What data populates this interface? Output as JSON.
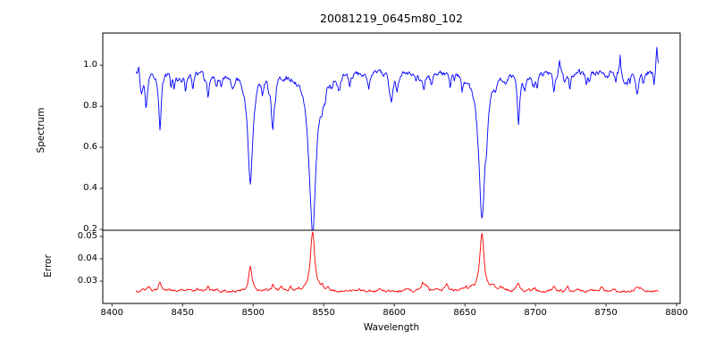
{
  "chart_data": [
    {
      "type": "line",
      "panel": "spectrum",
      "title": "20081219_0645m80_102",
      "ylabel": "Spectrum",
      "series_color": "#0000ff",
      "ylim": [
        0.196,
        1.157
      ],
      "yticks": [
        0.2,
        0.4,
        0.6,
        0.8,
        1.0
      ],
      "x_start": 8417,
      "x_end": 8787,
      "continuum": 0.97,
      "noise_amplitude": 0.018,
      "grid": false,
      "legend": false,
      "absorption_lines": [
        {
          "center": 8424,
          "min_flux": 0.84,
          "width": 0.8
        },
        {
          "center": 8434,
          "min_flux": 0.69,
          "width": 1.0
        },
        {
          "center": 8452,
          "min_flux": 0.88,
          "width": 0.8
        },
        {
          "center": 8468,
          "min_flux": 0.86,
          "width": 0.9
        },
        {
          "center": 8498.0,
          "min_flux": 0.43,
          "width": 2.2
        },
        {
          "center": 8514,
          "min_flux": 0.78,
          "width": 1.0
        },
        {
          "center": 8542.1,
          "min_flux": 0.23,
          "width": 3.0
        },
        {
          "center": 8582,
          "min_flux": 0.89,
          "width": 0.8
        },
        {
          "center": 8598,
          "min_flux": 0.87,
          "width": 0.8
        },
        {
          "center": 8621,
          "min_flux": 0.89,
          "width": 0.8
        },
        {
          "center": 8648,
          "min_flux": 0.9,
          "width": 0.8
        },
        {
          "center": 8662.1,
          "min_flux": 0.26,
          "width": 2.8
        },
        {
          "center": 8688,
          "min_flux": 0.72,
          "width": 1.0
        },
        {
          "center": 8713,
          "min_flux": 0.88,
          "width": 0.9
        },
        {
          "center": 8736,
          "min_flux": 0.91,
          "width": 0.8
        },
        {
          "center": 8757,
          "min_flux": 0.92,
          "width": 0.7
        },
        {
          "center": 8772,
          "min_flux": 0.87,
          "width": 0.9
        }
      ],
      "emission_spikes": [
        {
          "center": 8419,
          "peak_flux": 1.02,
          "width": 0.5
        },
        {
          "center": 8717,
          "peak_flux": 1.03,
          "width": 0.5
        },
        {
          "center": 8760,
          "peak_flux": 1.06,
          "width": 0.5
        },
        {
          "center": 8786,
          "peak_flux": 1.09,
          "width": 0.7
        }
      ]
    },
    {
      "type": "line",
      "panel": "error",
      "ylabel": "Error",
      "xlabel": "Wavelength",
      "series_color": "#ff0000",
      "ylim": [
        0.02,
        0.0528
      ],
      "yticks": [
        0.03,
        0.04,
        0.05
      ],
      "xlim": [
        8393.5,
        8802.5
      ],
      "xticks": [
        8400,
        8450,
        8500,
        8550,
        8600,
        8650,
        8700,
        8750,
        8800
      ],
      "baseline": 0.0255,
      "noise_amplitude": 0.0008,
      "grid": false,
      "legend": false,
      "peaks": [
        {
          "center": 8434,
          "height": 0.0045,
          "width": 1.2
        },
        {
          "center": 8468,
          "height": 0.002,
          "width": 1.0
        },
        {
          "center": 8498,
          "height": 0.0115,
          "width": 1.4
        },
        {
          "center": 8514,
          "height": 0.0025,
          "width": 1.0
        },
        {
          "center": 8542.1,
          "height": 0.027,
          "width": 1.8
        },
        {
          "center": 8662.1,
          "height": 0.0255,
          "width": 1.8
        },
        {
          "center": 8688,
          "height": 0.0035,
          "width": 1.2
        },
        {
          "center": 8713,
          "height": 0.0018,
          "width": 1.0
        },
        {
          "center": 8772,
          "height": 0.0018,
          "width": 1.0
        }
      ]
    }
  ]
}
